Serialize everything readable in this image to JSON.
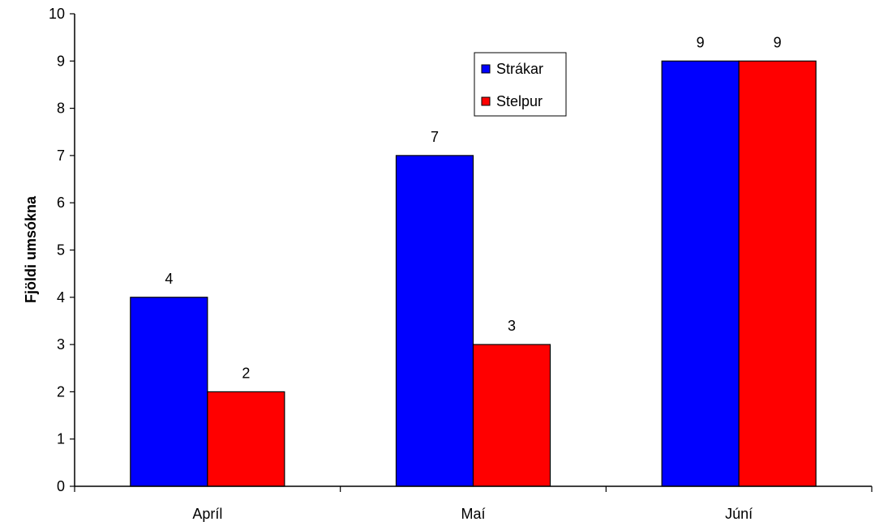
{
  "chart_data": {
    "type": "bar",
    "title": "",
    "xlabel": "",
    "ylabel": "Fjöldi umsókna",
    "ylim": [
      0,
      10
    ],
    "yticks": [
      0,
      1,
      2,
      3,
      4,
      5,
      6,
      7,
      8,
      9,
      10
    ],
    "grid": false,
    "categories": [
      "Apríl",
      "Maí",
      "Júní"
    ],
    "series": [
      {
        "name": "Strákar",
        "color": "#0000ff",
        "values": [
          4,
          7,
          9
        ]
      },
      {
        "name": "Stelpur",
        "color": "#ff0000",
        "values": [
          2,
          3,
          9
        ]
      }
    ],
    "data_labels": true,
    "legend_placement": "top-center"
  }
}
